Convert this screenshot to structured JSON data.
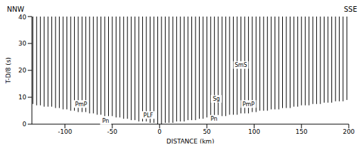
{
  "chart_data": {
    "type": "seismic_section",
    "direction_labels": [
      "NNW",
      "SSE"
    ],
    "x_label": "DISTANCE (km)",
    "y_label": "T-D/8 (s)",
    "xlim": [
      -135,
      200
    ],
    "xticks": [
      -100,
      -50,
      0,
      50,
      100,
      150,
      200
    ],
    "ylim": [
      0,
      40
    ],
    "yticks": [
      0,
      10,
      20,
      30,
      40
    ],
    "color": "#000000",
    "traces": {
      "x": [
        -134,
        -130,
        -126,
        -122,
        -118,
        -114,
        -110,
        -106,
        -102,
        -98,
        -94,
        -90,
        -86,
        -82,
        -78,
        -74,
        -70,
        -66,
        -62,
        -58,
        -54,
        -50,
        -46,
        -42,
        -38,
        -34,
        -30,
        -26,
        -22,
        -18,
        -14,
        -10,
        -6,
        -2,
        2,
        6,
        10,
        14,
        18,
        22,
        26,
        30,
        34,
        38,
        42,
        46,
        50,
        54,
        58,
        62,
        66,
        70,
        74,
        78,
        82,
        86,
        90,
        94,
        98,
        102,
        106,
        110,
        114,
        118,
        122,
        126,
        130,
        134,
        138,
        142,
        146,
        150,
        154,
        158,
        162,
        166,
        170,
        174,
        178,
        182,
        186,
        190,
        194,
        198
      ],
      "t_start": [
        7.5,
        7,
        7,
        6.5,
        6.5,
        6.5,
        6,
        6,
        5.5,
        5.5,
        5,
        5,
        4.5,
        4.5,
        4.5,
        4,
        4,
        3.5,
        3.5,
        3,
        3,
        3,
        2.5,
        2.5,
        2,
        2,
        1.5,
        1.5,
        1,
        1,
        1,
        0.5,
        0.5,
        0,
        0,
        0.5,
        0.5,
        0.5,
        1,
        1,
        1,
        1.5,
        1.5,
        1.5,
        2,
        2,
        2.5,
        2.5,
        2.5,
        3,
        3,
        3,
        3.5,
        3.5,
        3.5,
        4,
        4,
        4,
        4.5,
        4.5,
        5,
        5,
        5,
        5.5,
        5.5,
        5.5,
        6,
        6,
        6,
        6.5,
        6.5,
        7,
        7,
        7,
        7.5,
        7.5,
        7.5,
        8,
        8,
        8,
        8.5,
        8.5,
        8.5,
        9
      ]
    },
    "annotations": [
      {
        "text": "PmP",
        "x": -83,
        "y": 7.5
      },
      {
        "text": "Pn",
        "x": -57,
        "y": 1.2
      },
      {
        "text": "PLF",
        "x": -12,
        "y": 3.4
      },
      {
        "text": "Sg",
        "x": 60,
        "y": 9.4
      },
      {
        "text": "SmS",
        "x": 86,
        "y": 22
      },
      {
        "text": "Pn",
        "x": 57.5,
        "y": 2
      },
      {
        "text": "PmP",
        "x": 94,
        "y": 7.5
      }
    ]
  }
}
